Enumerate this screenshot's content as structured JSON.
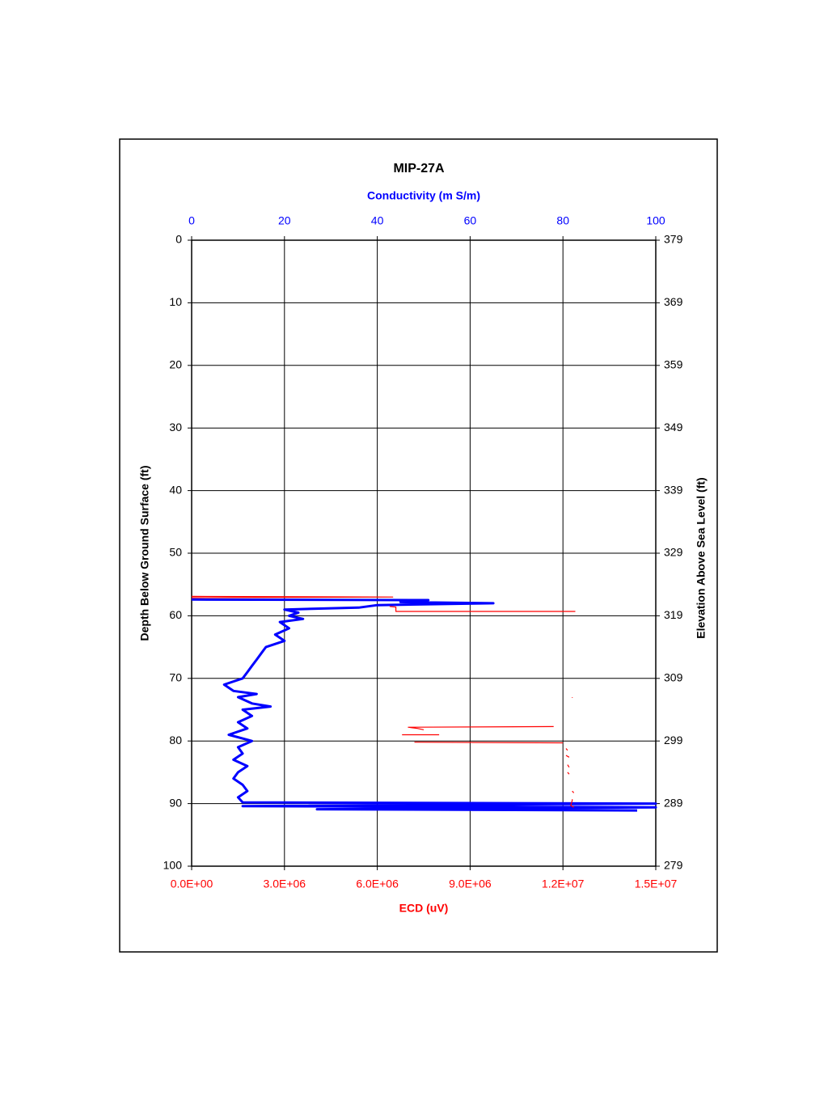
{
  "chart_data": {
    "type": "depth-profile",
    "title": "MIP-27A",
    "x2label": "Conductivity (m S/m)",
    "xlabel": "ECD (uV)",
    "ylabel": "Depth Below Ground Surface (ft)",
    "y2label": "Elevation Above Sea Level (ft)",
    "xlim": [
      0,
      15000000
    ],
    "xticks": [
      {
        "value": 0,
        "label": "0.0E+00"
      },
      {
        "value": 3000000,
        "label": "3.0E+06"
      },
      {
        "value": 6000000,
        "label": "6.0E+06"
      },
      {
        "value": 9000000,
        "label": "9.0E+06"
      },
      {
        "value": 12000000,
        "label": "1.2E+07"
      },
      {
        "value": 15000000,
        "label": "1.5E+07"
      }
    ],
    "x2lim": [
      0,
      100
    ],
    "x2ticks": [
      0,
      20,
      40,
      60,
      80,
      100
    ],
    "ylim": [
      0,
      100
    ],
    "y_inverted": true,
    "yticks": [
      0,
      10,
      20,
      30,
      40,
      50,
      60,
      70,
      80,
      90,
      100
    ],
    "y2lim": [
      379,
      279
    ],
    "y2ticks": [
      379,
      369,
      359,
      349,
      339,
      329,
      319,
      309,
      299,
      289,
      279
    ],
    "grid": true,
    "series": [
      {
        "axis": "x2",
        "color": "#0000ff",
        "depth": [
          57.4,
          57.5,
          57.8,
          58.0,
          58.3,
          58.7,
          59.0,
          59.5,
          60,
          60.5,
          61,
          62,
          63,
          64,
          65,
          66,
          67,
          68,
          69,
          70,
          71,
          72,
          72.5,
          73,
          74,
          74.5,
          75,
          76,
          77,
          78,
          79,
          80,
          81,
          82,
          83,
          84,
          85,
          86,
          87,
          88,
          89,
          89.8,
          90.0,
          90.4,
          90.6,
          90.9,
          91.1
        ],
        "values": [
          0,
          51,
          45,
          65,
          40,
          36,
          20,
          23,
          21,
          24,
          19,
          21,
          18,
          20,
          16,
          15,
          14,
          13,
          12,
          11,
          7,
          9,
          14,
          10,
          13,
          17,
          11,
          13,
          10,
          12,
          8,
          13,
          10,
          11,
          9,
          12,
          10,
          9,
          11,
          12,
          10,
          11,
          100,
          11,
          100,
          27,
          96
        ]
      },
      {
        "axis": "x",
        "color": "#ff0000",
        "depth": [
          56.9,
          57.0,
          57.1,
          null,
          58.5,
          58.6,
          59.3,
          59.3,
          null,
          73.0,
          73.1,
          null,
          77.7,
          77.8,
          78.0,
          78.2,
          null,
          79.0,
          79.0,
          null,
          80.2,
          80.3,
          null,
          81.2,
          81.5,
          null,
          82.3,
          82.6,
          null,
          83.8,
          84.2,
          null,
          85.0,
          85.3,
          null,
          88.0,
          88.3,
          null,
          89.3,
          89.5,
          90.3,
          90.6
        ],
        "values": [
          0,
          6500000,
          0,
          null,
          6400000,
          6600000,
          6600000,
          12400000,
          null,
          12300000,
          12300000,
          null,
          11700000,
          7000000,
          7300000,
          7500000,
          null,
          6800000,
          8000000,
          null,
          7200000,
          12000000,
          null,
          12100000,
          12150000,
          null,
          12100000,
          12200000,
          null,
          12150000,
          12200000,
          null,
          12150000,
          12200000,
          null,
          12300000,
          12350000,
          null,
          12300000,
          12300000,
          12250000,
          12350000
        ]
      }
    ]
  }
}
